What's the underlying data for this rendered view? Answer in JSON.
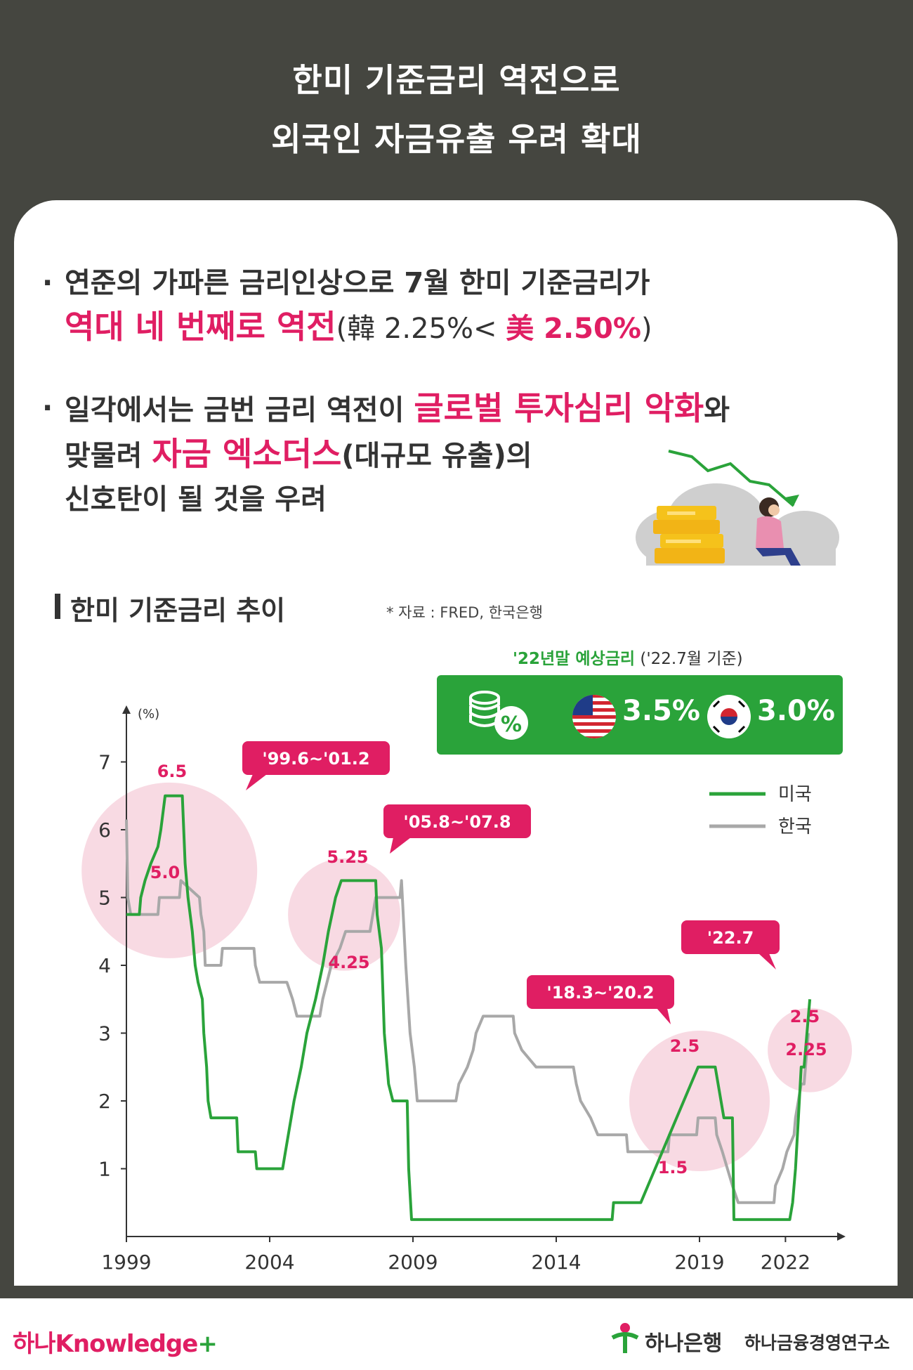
{
  "header": {
    "title_line1": "한미 기준금리 역전으로",
    "title_line2": "외국인 자금유출 우려 확대"
  },
  "bullets": {
    "b1_dot": "·",
    "b1_line1": "연준의 가파른 금리인상으로 7월 한미 기준금리가",
    "b1_hl": "역대 네 번째로 역전",
    "b1_paren_open": "(韓 2.25%< ",
    "b1_us": "美 2.50%",
    "b1_paren_close": ")",
    "b2_dot": "·",
    "b2_line1_a": "일각에서는 금번 금리 역전이 ",
    "b2_line1_hl": "글로벌 투자심리 악화",
    "b2_line1_b": "와",
    "b2_line2_a": "맞물려 ",
    "b2_line2_hl": "자금 엑소더스",
    "b2_line2_b": "(대규모 유출)의",
    "b2_line3": "신호탄이 될 것을 우려"
  },
  "section": {
    "title": "한미 기준금리 추이",
    "source": "* 자료 : FRED, 한국은행"
  },
  "forecast": {
    "title_green": "'22년말 예상금리",
    "title_rest": " ('22.7월 기준)",
    "percent_icon": "%",
    "us_value": "3.5%",
    "kr_value": "3.0%",
    "icons": [
      "coins-percent-icon",
      "us-flag-icon",
      "kr-flag-icon"
    ]
  },
  "colors": {
    "accent_pink": "#e01e63",
    "us_green": "#2aa33a",
    "kr_gray": "#a8a8a8",
    "header_dark": "#454640"
  },
  "chart_data": {
    "type": "line",
    "ylabel": "(%)",
    "ylim": [
      0,
      7.5
    ],
    "yticks": [
      1,
      2,
      3,
      4,
      5,
      6,
      7
    ],
    "xlim": [
      1999.0,
      2024.0
    ],
    "xticks": [
      1999,
      2004,
      2009,
      2014,
      2019,
      2022
    ],
    "grid": false,
    "legend_position": "right",
    "series": [
      {
        "name": "미국",
        "color": "#2aa33a",
        "points": [
          [
            1999.0,
            4.75
          ],
          [
            1999.45,
            4.75
          ],
          [
            1999.5,
            5.0
          ],
          [
            1999.65,
            5.25
          ],
          [
            1999.85,
            5.5
          ],
          [
            2000.1,
            5.75
          ],
          [
            2000.2,
            6.0
          ],
          [
            2000.35,
            6.5
          ],
          [
            2000.95,
            6.5
          ],
          [
            2001.05,
            5.5
          ],
          [
            2001.15,
            5.0
          ],
          [
            2001.3,
            4.5
          ],
          [
            2001.4,
            4.0
          ],
          [
            2001.5,
            3.75
          ],
          [
            2001.65,
            3.5
          ],
          [
            2001.7,
            3.0
          ],
          [
            2001.8,
            2.5
          ],
          [
            2001.85,
            2.0
          ],
          [
            2001.95,
            1.75
          ],
          [
            2002.85,
            1.75
          ],
          [
            2002.9,
            1.25
          ],
          [
            2003.5,
            1.25
          ],
          [
            2003.55,
            1.0
          ],
          [
            2004.45,
            1.0
          ],
          [
            2004.55,
            1.25
          ],
          [
            2004.65,
            1.5
          ],
          [
            2004.85,
            2.0
          ],
          [
            2005.1,
            2.5
          ],
          [
            2005.3,
            3.0
          ],
          [
            2005.6,
            3.5
          ],
          [
            2005.85,
            4.0
          ],
          [
            2006.05,
            4.5
          ],
          [
            2006.3,
            5.0
          ],
          [
            2006.5,
            5.25
          ],
          [
            2007.7,
            5.25
          ],
          [
            2007.75,
            4.75
          ],
          [
            2007.9,
            4.25
          ],
          [
            2008.0,
            3.0
          ],
          [
            2008.15,
            2.25
          ],
          [
            2008.3,
            2.0
          ],
          [
            2008.8,
            2.0
          ],
          [
            2008.85,
            1.0
          ],
          [
            2008.95,
            0.25
          ],
          [
            2015.95,
            0.25
          ],
          [
            2016.0,
            0.5
          ],
          [
            2016.95,
            0.5
          ],
          [
            2017.2,
            0.75
          ],
          [
            2017.45,
            1.0
          ],
          [
            2017.95,
            1.5
          ],
          [
            2018.2,
            1.75
          ],
          [
            2018.45,
            2.0
          ],
          [
            2018.7,
            2.25
          ],
          [
            2018.95,
            2.5
          ],
          [
            2019.55,
            2.5
          ],
          [
            2019.65,
            2.25
          ],
          [
            2019.75,
            2.0
          ],
          [
            2019.85,
            1.75
          ],
          [
            2020.15,
            1.75
          ],
          [
            2020.2,
            0.25
          ],
          [
            2022.15,
            0.25
          ],
          [
            2022.25,
            0.5
          ],
          [
            2022.35,
            1.0
          ],
          [
            2022.45,
            1.75
          ],
          [
            2022.55,
            2.5
          ],
          [
            2022.65,
            2.5
          ],
          [
            2022.75,
            3.0
          ],
          [
            2022.85,
            3.5
          ]
        ]
      },
      {
        "name": "한국",
        "color": "#a8a8a8",
        "points": [
          [
            1999.0,
            6.15
          ],
          [
            1999.05,
            5.0
          ],
          [
            1999.15,
            4.75
          ],
          [
            2000.1,
            4.75
          ],
          [
            2000.15,
            5.0
          ],
          [
            2000.85,
            5.0
          ],
          [
            2000.9,
            5.25
          ],
          [
            2001.55,
            5.0
          ],
          [
            2001.6,
            4.75
          ],
          [
            2001.7,
            4.5
          ],
          [
            2001.75,
            4.0
          ],
          [
            2002.3,
            4.0
          ],
          [
            2002.35,
            4.25
          ],
          [
            2003.45,
            4.25
          ],
          [
            2003.5,
            4.0
          ],
          [
            2003.65,
            3.75
          ],
          [
            2004.6,
            3.75
          ],
          [
            2004.8,
            3.5
          ],
          [
            2004.95,
            3.25
          ],
          [
            2005.75,
            3.25
          ],
          [
            2005.85,
            3.5
          ],
          [
            2006.0,
            3.75
          ],
          [
            2006.15,
            4.0
          ],
          [
            2006.45,
            4.25
          ],
          [
            2006.65,
            4.5
          ],
          [
            2007.5,
            4.5
          ],
          [
            2007.6,
            4.75
          ],
          [
            2007.7,
            5.0
          ],
          [
            2008.55,
            5.0
          ],
          [
            2008.6,
            5.25
          ],
          [
            2008.75,
            4.0
          ],
          [
            2008.9,
            3.0
          ],
          [
            2009.05,
            2.5
          ],
          [
            2009.15,
            2.0
          ],
          [
            2010.5,
            2.0
          ],
          [
            2010.6,
            2.25
          ],
          [
            2010.9,
            2.5
          ],
          [
            2011.1,
            2.75
          ],
          [
            2011.2,
            3.0
          ],
          [
            2011.45,
            3.25
          ],
          [
            2012.5,
            3.25
          ],
          [
            2012.55,
            3.0
          ],
          [
            2012.8,
            2.75
          ],
          [
            2013.3,
            2.5
          ],
          [
            2014.6,
            2.5
          ],
          [
            2014.7,
            2.25
          ],
          [
            2014.85,
            2.0
          ],
          [
            2015.2,
            1.75
          ],
          [
            2015.45,
            1.5
          ],
          [
            2016.45,
            1.5
          ],
          [
            2016.5,
            1.25
          ],
          [
            2017.9,
            1.25
          ],
          [
            2017.95,
            1.5
          ],
          [
            2018.9,
            1.5
          ],
          [
            2018.95,
            1.75
          ],
          [
            2019.55,
            1.75
          ],
          [
            2019.6,
            1.5
          ],
          [
            2019.8,
            1.25
          ],
          [
            2020.15,
            0.75
          ],
          [
            2020.35,
            0.5
          ],
          [
            2021.6,
            0.5
          ],
          [
            2021.65,
            0.75
          ],
          [
            2021.9,
            1.0
          ],
          [
            2022.05,
            1.25
          ],
          [
            2022.3,
            1.5
          ],
          [
            2022.35,
            1.75
          ],
          [
            2022.55,
            2.25
          ],
          [
            2022.65,
            2.25
          ],
          [
            2022.8,
            3.0
          ]
        ]
      }
    ],
    "highlights": [
      {
        "label": "'99.6~'01.2",
        "us": "6.5",
        "kr": "5.0",
        "center": [
          2000.5,
          5.4
        ]
      },
      {
        "label": "'05.8~'07.8",
        "us": "5.25",
        "kr": "4.25",
        "center": [
          2006.6,
          4.75
        ]
      },
      {
        "label": "'18.3~'20.2",
        "us": "2.5",
        "kr": "1.5",
        "center": [
          2019.0,
          2.0
        ]
      },
      {
        "label": "'22.7",
        "us": "2.5",
        "kr": "2.25",
        "center": [
          2022.85,
          2.75
        ]
      }
    ]
  },
  "footer": {
    "brand": "하나Knowledge",
    "brand_plus": "+",
    "bank": "하나은행",
    "institute": "하나금융경영연구소"
  }
}
